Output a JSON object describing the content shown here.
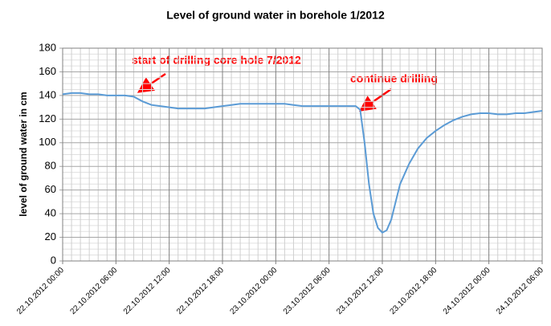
{
  "chart_data": {
    "type": "line",
    "title": "Level of ground water in borehole 1/2012",
    "y_label": "level of ground water  in cm",
    "annotations": [
      "start of drilling core hole 7/2012",
      "continue drilling"
    ],
    "x": [
      "22.10.2012 00:00",
      "22.10.2012 01:00",
      "22.10.2012 02:00",
      "22.10.2012 03:00",
      "22.10.2012 04:00",
      "22.10.2012 05:00",
      "22.10.2012 06:00",
      "22.10.2012 07:00",
      "22.10.2012 08:00",
      "22.10.2012 09:00",
      "22.10.2012 10:00",
      "22.10.2012 11:00",
      "22.10.2012 12:00",
      "22.10.2012 13:00",
      "22.10.2012 14:00",
      "22.10.2012 15:00",
      "22.10.2012 16:00",
      "22.10.2012 17:00",
      "22.10.2012 18:00",
      "22.10.2012 19:00",
      "22.10.2012 20:00",
      "22.10.2012 21:00",
      "22.10.2012 22:00",
      "22.10.2012 23:00",
      "23.10.2012 00:00",
      "23.10.2012 01:00",
      "23.10.2012 02:00",
      "23.10.2012 03:00",
      "23.10.2012 04:00",
      "23.10.2012 05:00",
      "23.10.2012 06:00",
      "23.10.2012 07:00",
      "23.10.2012 08:00",
      "23.10.2012 09:00",
      "23.10.2012 09:30",
      "23.10.2012 10:00",
      "23.10.2012 10:30",
      "23.10.2012 11:00",
      "23.10.2012 11:30",
      "23.10.2012 12:00",
      "23.10.2012 12:30",
      "23.10.2012 13:00",
      "23.10.2012 13:30",
      "23.10.2012 14:00",
      "23.10.2012 15:00",
      "23.10.2012 16:00",
      "23.10.2012 17:00",
      "23.10.2012 18:00",
      "23.10.2012 19:00",
      "23.10.2012 20:00",
      "23.10.2012 21:00",
      "23.10.2012 22:00",
      "23.10.2012 23:00",
      "24.10.2012 00:00",
      "24.10.2012 01:00",
      "24.10.2012 02:00",
      "24.10.2012 03:00",
      "24.10.2012 04:00",
      "24.10.2012 05:00",
      "24.10.2012 06:00"
    ],
    "series": [
      {
        "name": "level",
        "color": "#5b9bd5",
        "values": [
          141,
          142,
          142,
          141,
          141,
          140,
          140,
          140,
          139,
          135,
          132,
          131,
          130,
          129,
          129,
          129,
          129,
          130,
          131,
          132,
          133,
          133,
          133,
          133,
          133,
          133,
          132,
          131,
          131,
          131,
          131,
          131,
          131,
          131,
          128,
          100,
          65,
          40,
          28,
          24,
          26,
          35,
          50,
          65,
          82,
          95,
          104,
          110,
          115,
          119,
          122,
          124,
          125,
          125,
          124,
          124,
          125,
          125,
          126,
          127
        ]
      }
    ],
    "xlim": [
      "22.10.2012 00:00",
      "24.10.2012 06:00"
    ],
    "xticks": [
      "22.10.2012 00:00",
      "22.10.2012 06:00",
      "22.10.2012 12:00",
      "22.10.2012 18:00",
      "23.10.2012 00:00",
      "23.10.2012 06:00",
      "23.10.2012 12:00",
      "23.10.2012 18:00",
      "24.10.2012 00:00",
      "24.10.2012 06:00"
    ],
    "ylim": [
      0,
      180
    ],
    "yticks": [
      0,
      20,
      40,
      60,
      80,
      100,
      120,
      140,
      160,
      180
    ],
    "grid": true
  }
}
